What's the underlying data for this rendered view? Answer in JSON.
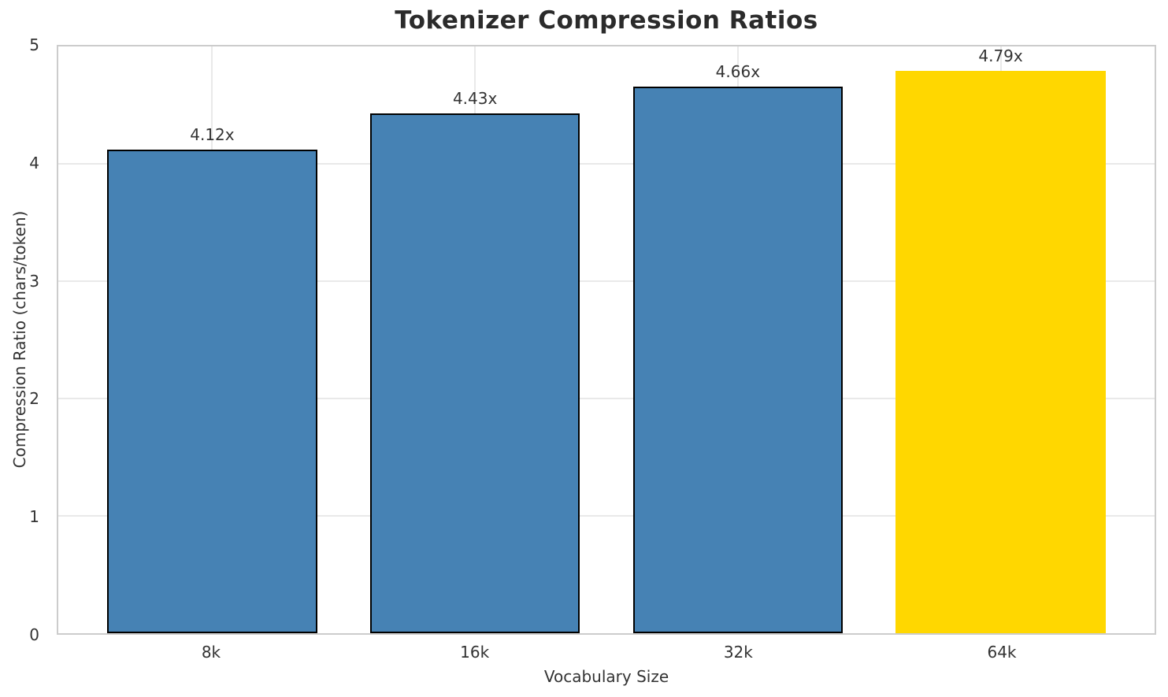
{
  "chart_data": {
    "type": "bar",
    "title": "Tokenizer Compression Ratios",
    "xlabel": "Vocabulary Size",
    "ylabel": "Compression Ratio (chars/token)",
    "categories": [
      "8k",
      "16k",
      "32k",
      "64k"
    ],
    "values": [
      4.12,
      4.43,
      4.66,
      4.79
    ],
    "bar_labels": [
      "4.12x",
      "4.43x",
      "4.66x",
      "4.79x"
    ],
    "ylim": [
      0,
      5
    ],
    "yticks": [
      0,
      1,
      2,
      3,
      4,
      5
    ],
    "grid": true,
    "legend_position": "none",
    "bar_colors": [
      "#4682B4",
      "#4682B4",
      "#4682B4",
      "#FFD700"
    ],
    "bar_edge_colors": [
      "#000000",
      "#000000",
      "#000000",
      "none"
    ],
    "highlight_category": "64k",
    "background_color": "#ffffff",
    "grid_color": "#e9e9e9",
    "spine_color": "#cccccc",
    "text_color": "#333333",
    "title_color": "#2b2b2b"
  }
}
